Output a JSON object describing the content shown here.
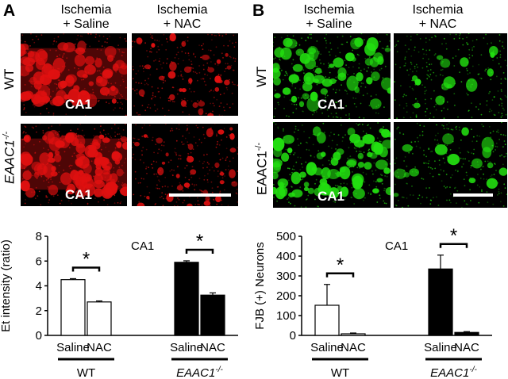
{
  "panels": [
    {
      "letter": "A",
      "stain_color": "#e01010",
      "col_headers": [
        "Ischemia\n+ Saline",
        "Ischemia\n+ NAC"
      ],
      "row_labels": [
        "WT",
        "EAAC1-/-"
      ],
      "region_label": "CA1",
      "chart_data": {
        "type": "bar",
        "region": "CA1",
        "ylabel": "Et intensity (ratio)",
        "yticks": [
          "0",
          "2",
          "4",
          "6",
          "8"
        ],
        "ylim": [
          0,
          8
        ],
        "groups": [
          "WT",
          "EAAC1-/-"
        ],
        "categories": [
          "Saline",
          "NAC",
          "Saline",
          "NAC"
        ],
        "values": [
          4.5,
          2.7,
          5.9,
          3.25
        ],
        "errors": [
          0.08,
          0.08,
          0.12,
          0.18
        ],
        "fills": [
          "#ffffff",
          "#ffffff",
          "#000000",
          "#000000"
        ],
        "significance": "*"
      }
    },
    {
      "letter": "B",
      "stain_color": "#22e010",
      "col_headers": [
        "Ischemia\n+ Saline",
        "Ischemia\n+ NAC"
      ],
      "row_labels": [
        "WT",
        "EAAC1-/-"
      ],
      "region_label": "CA1",
      "chart_data": {
        "type": "bar",
        "region": "CA1",
        "ylabel": "FJB (+) Neurons",
        "yticks": [
          "0",
          "100",
          "200",
          "300",
          "400",
          "500"
        ],
        "ylim": [
          0,
          500
        ],
        "groups": [
          "WT",
          "EAAC1-/-"
        ],
        "categories": [
          "Saline",
          "NAC",
          "Saline",
          "NAC"
        ],
        "values": [
          152,
          8,
          335,
          15
        ],
        "errors": [
          105,
          4,
          70,
          4
        ],
        "fills": [
          "#ffffff",
          "#ffffff",
          "#000000",
          "#000000"
        ],
        "significance": "*"
      }
    }
  ]
}
